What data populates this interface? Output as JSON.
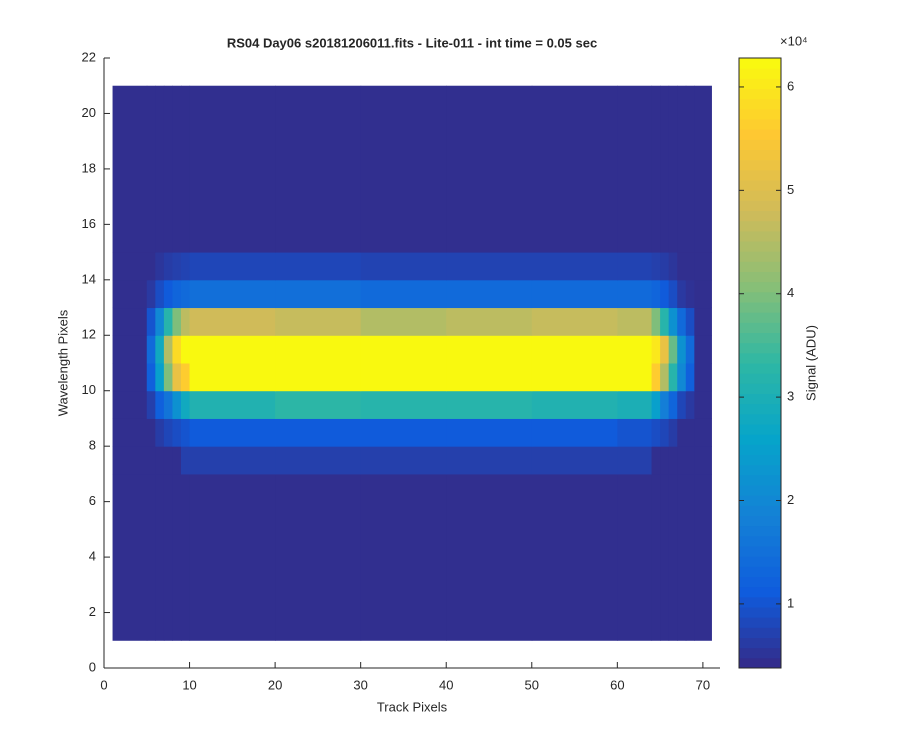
{
  "chart_data": {
    "type": "heatmap",
    "title": "RS04 Day06  s20181206011.fits - Lite-011 - int time = 0.05 sec",
    "x_label": "Track Pixels",
    "y_label": "Wavelength Pixels",
    "colorbar_label": "Signal (ADU)",
    "colorbar_multiplier": "×10⁴",
    "colormap": "parula",
    "xlim": [
      0,
      72
    ],
    "xticks": [
      0,
      10,
      20,
      30,
      40,
      50,
      60,
      70
    ],
    "ylim": [
      0,
      22
    ],
    "yticks": [
      0,
      2,
      4,
      6,
      8,
      10,
      12,
      14,
      16,
      18,
      20,
      22
    ],
    "clim": [
      3800,
      62800
    ],
    "cticks": [
      {
        "value": 10000,
        "label": "1"
      },
      {
        "value": 20000,
        "label": "2"
      },
      {
        "value": 30000,
        "label": "3"
      },
      {
        "value": 40000,
        "label": "4"
      },
      {
        "value": 50000,
        "label": "5"
      },
      {
        "value": 60000,
        "label": "6"
      }
    ],
    "x_edges": [
      1,
      5,
      6,
      7,
      8,
      9,
      10,
      20,
      30,
      40,
      50,
      60,
      64,
      65,
      66,
      67,
      68,
      69,
      71
    ],
    "y_edges": [
      1,
      7,
      8,
      9,
      10,
      11,
      12,
      13,
      14,
      15,
      21
    ],
    "values": [
      [
        4500,
        4500,
        4500,
        4500,
        4500,
        4500,
        4500,
        4500,
        4500,
        4500,
        4500,
        4500,
        4500,
        4500,
        4500,
        4500,
        4500,
        4500
      ],
      [
        4500,
        4500,
        4500,
        4500,
        4500,
        7000,
        7000,
        7000,
        7000,
        7000,
        7000,
        7000,
        4500,
        4500,
        4500,
        4500,
        4500,
        4500
      ],
      [
        4500,
        4500,
        6500,
        8000,
        9000,
        10000,
        11000,
        11000,
        11000,
        11000,
        11000,
        10000,
        9000,
        8000,
        6500,
        4500,
        4500,
        4500
      ],
      [
        4500,
        7000,
        12000,
        16000,
        22000,
        28000,
        31000,
        33000,
        32000,
        32000,
        31000,
        30000,
        25000,
        18000,
        13000,
        8000,
        6000,
        4500
      ],
      [
        4500,
        12000,
        25000,
        40000,
        52000,
        56000,
        62500,
        62500,
        62500,
        62500,
        62500,
        62500,
        56000,
        45000,
        32000,
        20000,
        12000,
        4500
      ],
      [
        4500,
        14000,
        28000,
        45000,
        58000,
        62500,
        62500,
        62500,
        62500,
        62500,
        62500,
        62500,
        60000,
        52000,
        38000,
        22000,
        14000,
        4500
      ],
      [
        4500,
        10000,
        20000,
        32000,
        40000,
        46000,
        48000,
        47000,
        45000,
        46000,
        47000,
        46000,
        40000,
        32000,
        22000,
        14000,
        9000,
        4500
      ],
      [
        4500,
        6000,
        9000,
        11000,
        13000,
        14000,
        15000,
        15000,
        14000,
        14000,
        14000,
        14000,
        13000,
        11000,
        9000,
        6000,
        5000,
        4500
      ],
      [
        4500,
        4500,
        5500,
        6500,
        7000,
        7500,
        8000,
        8000,
        7500,
        7500,
        7500,
        7500,
        7000,
        6500,
        5500,
        4500,
        4500,
        4500
      ],
      [
        4500,
        4500,
        4500,
        4500,
        4500,
        4500,
        4500,
        4500,
        4500,
        4500,
        4500,
        4500,
        4500,
        4500,
        4500,
        4500,
        4500,
        4500
      ]
    ]
  }
}
